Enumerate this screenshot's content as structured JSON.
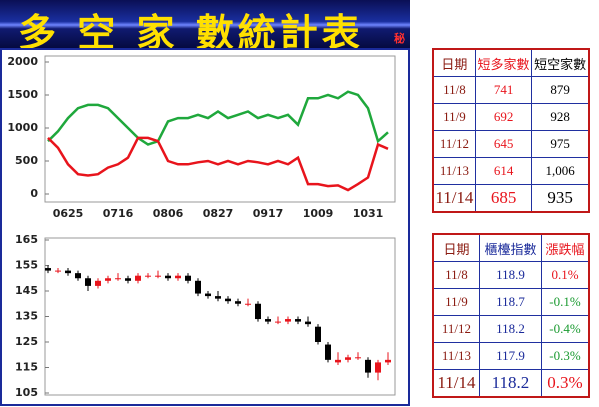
{
  "header": {
    "title": "多 空 家 數統計表",
    "badge": "秘"
  },
  "chart_data": [
    {
      "type": "line",
      "categories": [
        null,
        null,
        "0625",
        null,
        null,
        null,
        null,
        "0716",
        null,
        null,
        null,
        null,
        "0806",
        null,
        null,
        null,
        null,
        "0827",
        null,
        null,
        null,
        null,
        "0917",
        null,
        null,
        null,
        null,
        "1009",
        null,
        null,
        null,
        null,
        "1031",
        null,
        null
      ],
      "series": [
        {
          "color": "#1fa83c",
          "values": [
            800,
            950,
            1150,
            1300,
            1350,
            1350,
            1300,
            1150,
            1000,
            850,
            750,
            800,
            1100,
            1150,
            1150,
            1200,
            1150,
            1250,
            1150,
            1200,
            1250,
            1150,
            1200,
            1150,
            1200,
            1050,
            1450,
            1450,
            1500,
            1450,
            1550,
            1500,
            1300,
            800,
            935
          ]
        },
        {
          "color": "#e8141c",
          "values": [
            850,
            700,
            450,
            300,
            280,
            300,
            400,
            450,
            550,
            850,
            850,
            800,
            500,
            450,
            450,
            480,
            500,
            450,
            500,
            450,
            500,
            480,
            450,
            500,
            450,
            550,
            150,
            150,
            120,
            130,
            60,
            150,
            250,
            750,
            685
          ]
        }
      ],
      "ylim": [
        0,
        2000
      ],
      "yticks": [
        0,
        500,
        1000,
        1500,
        2000
      ]
    },
    {
      "type": "candlestick",
      "open": [
        154,
        153,
        153,
        152,
        150,
        147,
        149,
        150,
        150,
        149,
        151,
        151,
        151,
        150,
        151,
        149,
        144,
        143,
        142,
        141,
        140,
        140,
        134,
        133,
        133,
        134,
        133,
        131,
        124,
        117,
        118,
        119,
        118,
        113,
        117
      ],
      "high": [
        155,
        154,
        154,
        153,
        151,
        150,
        151,
        152,
        151,
        152,
        152,
        153,
        152,
        152,
        152,
        150,
        145,
        145,
        143,
        142,
        142,
        141,
        135,
        135,
        135,
        135,
        135,
        132,
        125,
        121,
        120,
        121,
        119,
        118,
        121
      ],
      "low": [
        152,
        152,
        151,
        149,
        145,
        146,
        148,
        149,
        148,
        148,
        150,
        150,
        149,
        149,
        148,
        143,
        142,
        141,
        140,
        139,
        139,
        133,
        132,
        132,
        132,
        132,
        131,
        124,
        117,
        116,
        117,
        118,
        111,
        110,
        116
      ],
      "close": [
        153,
        153,
        152,
        150,
        147,
        149,
        150,
        150,
        149,
        151,
        151,
        151,
        150,
        151,
        149,
        144,
        143,
        142,
        141,
        140,
        140,
        134,
        133,
        133,
        134,
        133,
        132,
        125,
        118,
        118,
        119,
        119,
        113,
        117,
        118
      ],
      "up_color": "#e8141c",
      "down_color": "#000000",
      "ylim": [
        105,
        165
      ],
      "yticks": [
        105,
        115,
        125,
        135,
        145,
        155,
        165
      ]
    }
  ],
  "tables": [
    {
      "header": [
        "日期",
        "短多家數",
        "短空家數"
      ],
      "rows": [
        [
          "11/8",
          "741",
          "879"
        ],
        [
          "11/9",
          "692",
          "928"
        ],
        [
          "11/12",
          "645",
          "975"
        ],
        [
          "11/13",
          "614",
          "1,006"
        ],
        [
          "11/14",
          "685",
          "935"
        ]
      ]
    },
    {
      "header": [
        "日期",
        "櫃檯指數",
        "漲跌幅"
      ],
      "rows": [
        [
          "11/8",
          "118.9",
          "0.1%"
        ],
        [
          "11/9",
          "118.7",
          "-0.1%"
        ],
        [
          "11/12",
          "118.2",
          "-0.4%"
        ],
        [
          "11/13",
          "117.9",
          "-0.3%"
        ],
        [
          "11/14",
          "118.2",
          "0.3%"
        ]
      ]
    }
  ]
}
